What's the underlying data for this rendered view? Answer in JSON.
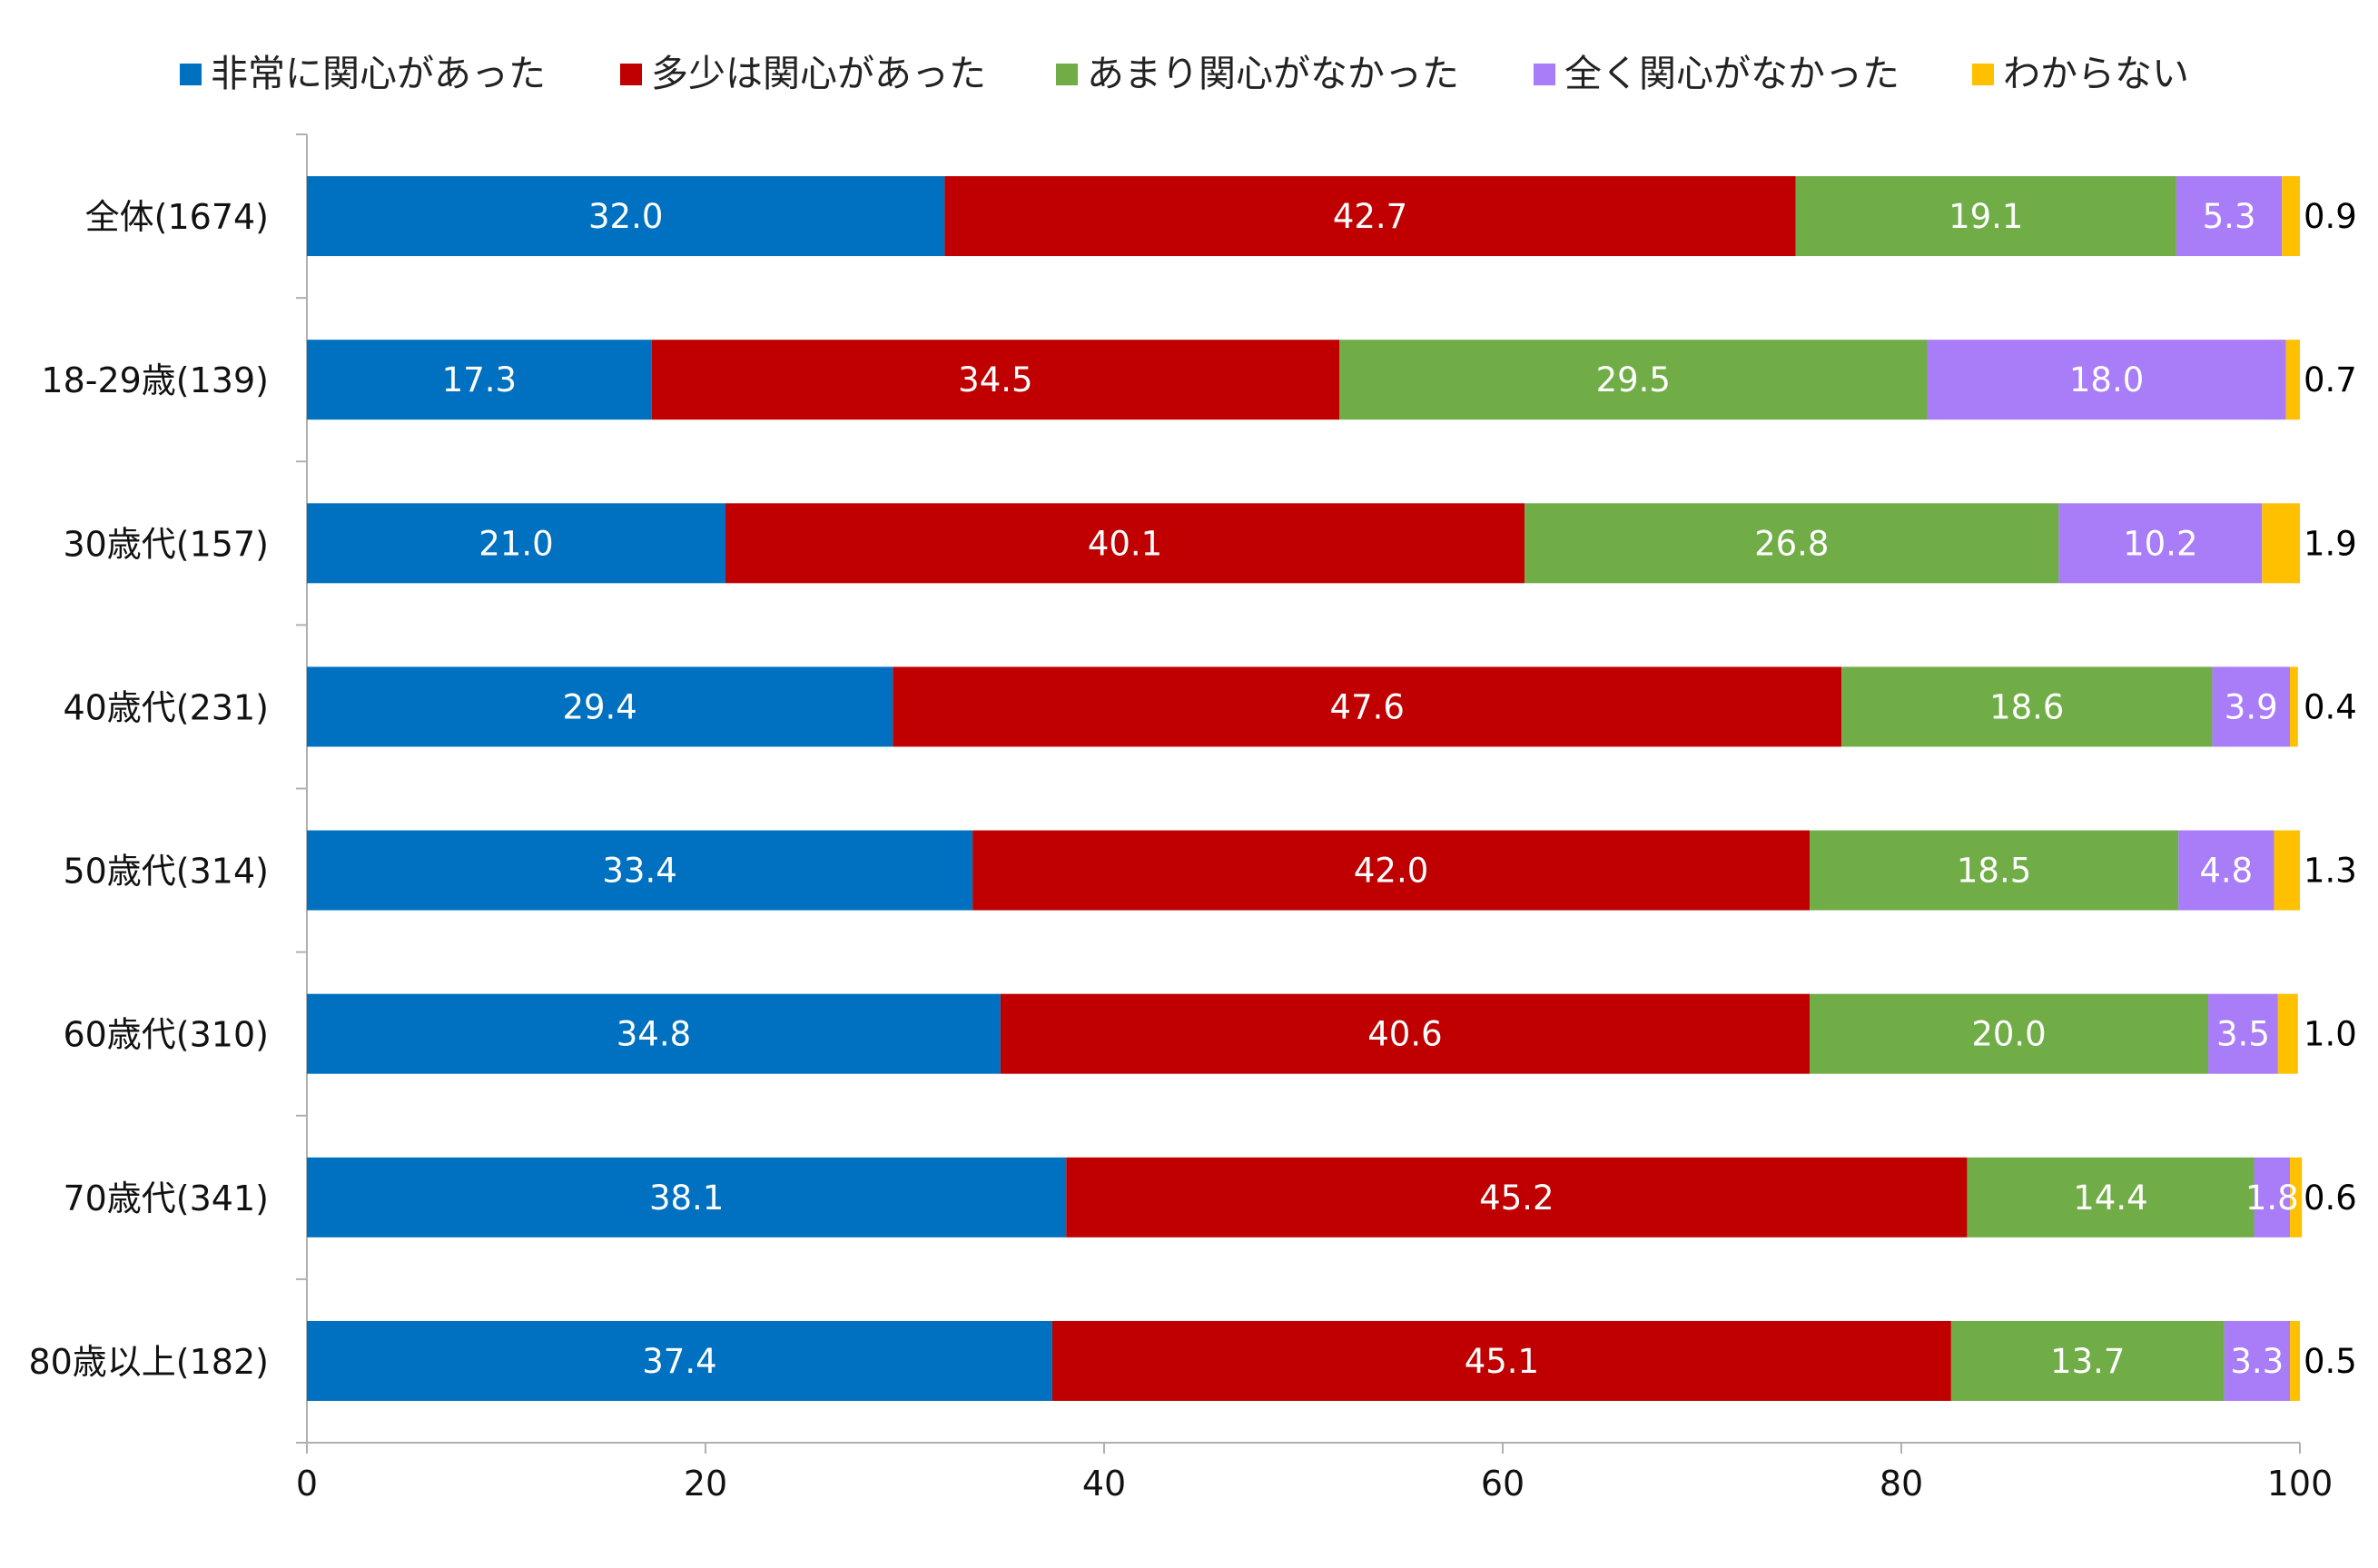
{
  "chart_data": {
    "type": "bar",
    "orientation": "horizontal",
    "stacked": true,
    "title": "",
    "xlabel": "",
    "ylabel": "",
    "xlim": [
      0,
      100
    ],
    "x_ticks": [
      "0",
      "20",
      "40",
      "60",
      "80",
      "100"
    ],
    "x_tick_values": [
      0,
      20,
      40,
      60,
      80,
      100
    ],
    "legend_position": "top",
    "grid": false,
    "categories": [
      "全体(1674)",
      "18-29歳(139)",
      "30歳代(157)",
      "40歳代(231)",
      "50歳代(314)",
      "60歳代(310)",
      "70歳代(341)",
      "80歳以上(182)"
    ],
    "series": [
      {
        "name": "非常に関心があった",
        "color": "#0070C0",
        "label_color": "#ffffff",
        "values": [
          32.0,
          17.3,
          21.0,
          29.4,
          33.4,
          34.8,
          38.1,
          37.4
        ],
        "labels": [
          "32.0",
          "17.3",
          "21.0",
          "29.4",
          "33.4",
          "34.8",
          "38.1",
          "37.4"
        ]
      },
      {
        "name": "多少は関心があった",
        "color": "#C00000",
        "label_color": "#ffffff",
        "values": [
          42.7,
          34.5,
          40.1,
          47.6,
          42.0,
          40.6,
          45.2,
          45.1
        ],
        "labels": [
          "42.7",
          "34.5",
          "40.1",
          "47.6",
          "42.0",
          "40.6",
          "45.2",
          "45.1"
        ]
      },
      {
        "name": "あまり関心がなかった",
        "color": "#70AD47",
        "label_color": "#ffffff",
        "values": [
          19.1,
          29.5,
          26.8,
          18.6,
          18.5,
          20.0,
          14.4,
          13.7
        ],
        "labels": [
          "19.1",
          "29.5",
          "26.8",
          "18.6",
          "18.5",
          "20.0",
          "14.4",
          "13.7"
        ]
      },
      {
        "name": "全く関心がなかった",
        "color": "#A97CF8",
        "label_color": "#ffffff",
        "values": [
          5.3,
          18.0,
          10.2,
          3.9,
          4.8,
          3.5,
          1.8,
          3.3
        ],
        "labels": [
          "5.3",
          "18.0",
          "10.2",
          "3.9",
          "4.8",
          "3.5",
          "1.8",
          "3.3"
        ]
      },
      {
        "name": "わからない",
        "color": "#FFC000",
        "label_color": "#000000",
        "label_outside": true,
        "values": [
          0.9,
          0.7,
          1.9,
          0.4,
          1.3,
          1.0,
          0.6,
          0.5
        ],
        "labels": [
          "0.9",
          "0.7",
          "1.9",
          "0.4",
          "1.3",
          "1.0",
          "0.6",
          "0.5"
        ]
      }
    ]
  }
}
